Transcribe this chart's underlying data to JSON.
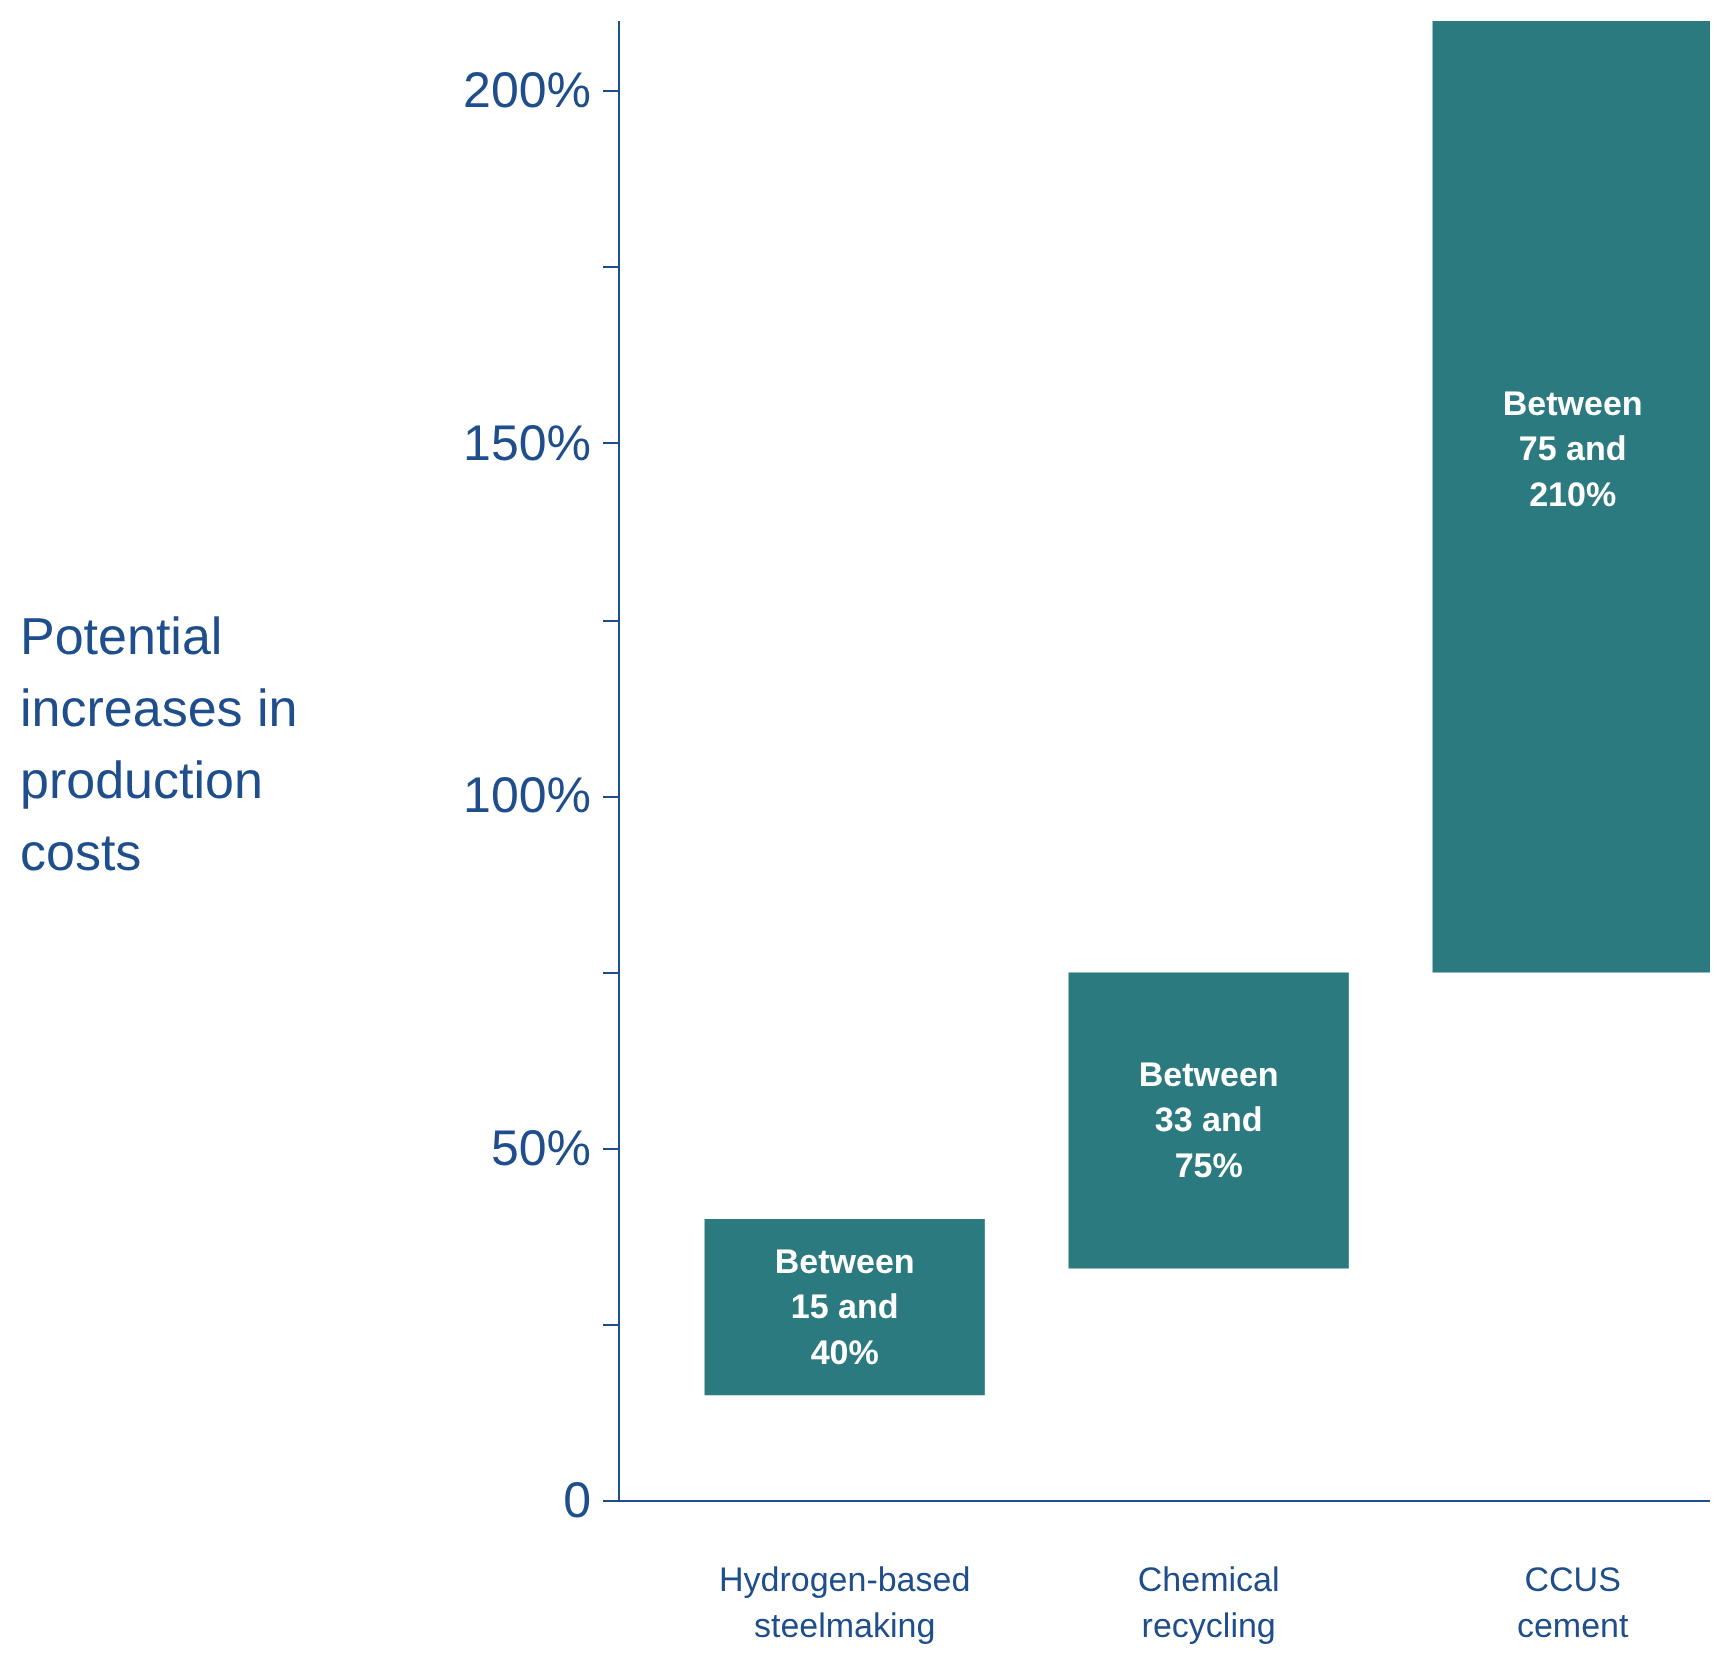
{
  "chart_data": {
    "type": "bar",
    "ylabel": "Potential increases in production costs",
    "categories": [
      "Hydrogen-based steelmaking",
      "Chemical recycling",
      "CCUS cement"
    ],
    "base": [
      15,
      33,
      75
    ],
    "values": [
      25,
      42,
      135
    ],
    "color": "#2b7a80",
    "annotations": [
      "Between 15 and 40%",
      "Between 33 and 75%",
      "Between 75 and 210%"
    ],
    "ylim": [
      0,
      210
    ],
    "yticks": [
      {
        "value": 0,
        "label": "0"
      },
      {
        "value": 25,
        "label": null
      },
      {
        "value": 50,
        "label": "50%"
      },
      {
        "value": 75,
        "label": null
      },
      {
        "value": 100,
        "label": "100%"
      },
      {
        "value": 125,
        "label": null
      },
      {
        "value": 150,
        "label": "150%"
      },
      {
        "value": 175,
        "label": null
      },
      {
        "value": 200,
        "label": "200%"
      }
    ],
    "grid": false
  }
}
